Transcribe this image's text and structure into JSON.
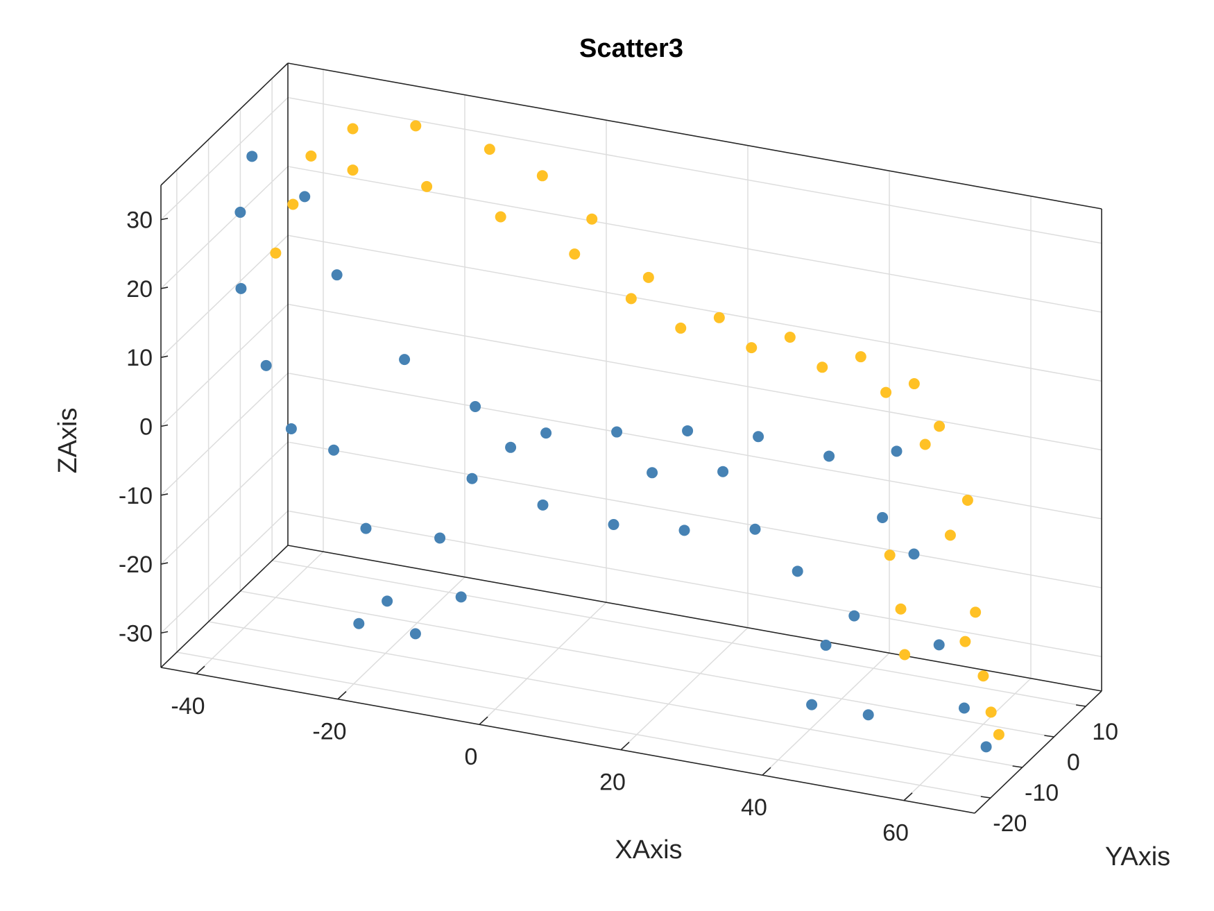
{
  "chart_data": {
    "type": "scatter",
    "title": "Scatter3",
    "xlabel": "XAxis",
    "ylabel": "YAxis",
    "zlabel": "ZAxis",
    "xlim": [
      -45,
      70
    ],
    "ylim": [
      -25,
      15
    ],
    "zlim": [
      -35,
      35
    ],
    "x_ticks": [
      "-40",
      "-20",
      "0",
      "20",
      "40",
      "60"
    ],
    "y_ticks": [
      "-20",
      "-10",
      "0",
      "10"
    ],
    "z_ticks": [
      "-30",
      "-20",
      "-10",
      "0",
      "10",
      "20",
      "30"
    ],
    "grid": true,
    "box": true,
    "series": [
      {
        "color": "#FFC125",
        "points": [
          [
            -35,
            0,
            30
          ],
          [
            -30,
            2,
            34
          ],
          [
            -22,
            4,
            35
          ],
          [
            -12,
            5,
            33
          ],
          [
            -5,
            6,
            30
          ],
          [
            2,
            6,
            25
          ],
          [
            10,
            6,
            18
          ],
          [
            20,
            6,
            14
          ],
          [
            30,
            6,
            13
          ],
          [
            40,
            6,
            12
          ],
          [
            48,
            5,
            10
          ],
          [
            52,
            4,
            5
          ],
          [
            56,
            4,
            -5
          ],
          [
            58,
            2,
            -20
          ],
          [
            60,
            0,
            -28
          ],
          [
            62,
            -2,
            -32
          ],
          [
            64,
            -4,
            -34
          ],
          [
            -40,
            0,
            15
          ],
          [
            -38,
            1,
            22
          ],
          [
            -30,
            2,
            28
          ],
          [
            -20,
            3,
            27
          ],
          [
            -10,
            4,
            24
          ],
          [
            0,
            5,
            20
          ],
          [
            8,
            5,
            15
          ],
          [
            15,
            5,
            12
          ],
          [
            25,
            5,
            11
          ],
          [
            35,
            5,
            10
          ],
          [
            44,
            5,
            8
          ],
          [
            50,
            4,
            2
          ],
          [
            54,
            3,
            -10
          ],
          [
            57,
            1,
            -24
          ],
          [
            45,
            4,
            -15
          ],
          [
            47,
            3,
            -22
          ],
          [
            48,
            2,
            -28
          ]
        ]
      },
      {
        "color": "#4682B4",
        "points": [
          [
            -45,
            0,
            20
          ],
          [
            -44,
            -2,
            10
          ],
          [
            -40,
            -3,
            0
          ],
          [
            -36,
            -4,
            -8
          ],
          [
            -30,
            -4,
            -10
          ],
          [
            -25,
            -5,
            -20
          ],
          [
            -22,
            -5,
            -30
          ],
          [
            -26,
            -5,
            -34
          ],
          [
            -18,
            -5,
            -34
          ],
          [
            -10,
            -5,
            -10
          ],
          [
            0,
            -5,
            -12
          ],
          [
            10,
            -5,
            -13
          ],
          [
            20,
            -5,
            -12
          ],
          [
            30,
            -5,
            -10
          ],
          [
            36,
            -5,
            -15
          ],
          [
            40,
            -5,
            -25
          ],
          [
            38,
            -5,
            -34
          ],
          [
            46,
            -5,
            -34
          ],
          [
            44,
            -5,
            -20
          ],
          [
            48,
            -5,
            -5
          ],
          [
            50,
            -5,
            5
          ],
          [
            -42,
            -3,
            30
          ],
          [
            -35,
            -2,
            25
          ],
          [
            -30,
            -3,
            15
          ],
          [
            -20,
            -4,
            5
          ],
          [
            -10,
            -4,
            0
          ],
          [
            0,
            -4,
            -2
          ],
          [
            10,
            -4,
            0
          ],
          [
            20,
            -4,
            2
          ],
          [
            30,
            -4,
            3
          ],
          [
            40,
            -4,
            2
          ],
          [
            52,
            -4,
            -10
          ],
          [
            56,
            -5,
            -22
          ],
          [
            60,
            -6,
            -30
          ],
          [
            64,
            -8,
            -34
          ],
          [
            -15,
            -4,
            -20
          ],
          [
            -12,
            -4,
            -28
          ],
          [
            -5,
            -4,
            -5
          ],
          [
            15,
            -4,
            -5
          ],
          [
            25,
            -4,
            -3
          ]
        ]
      }
    ]
  }
}
